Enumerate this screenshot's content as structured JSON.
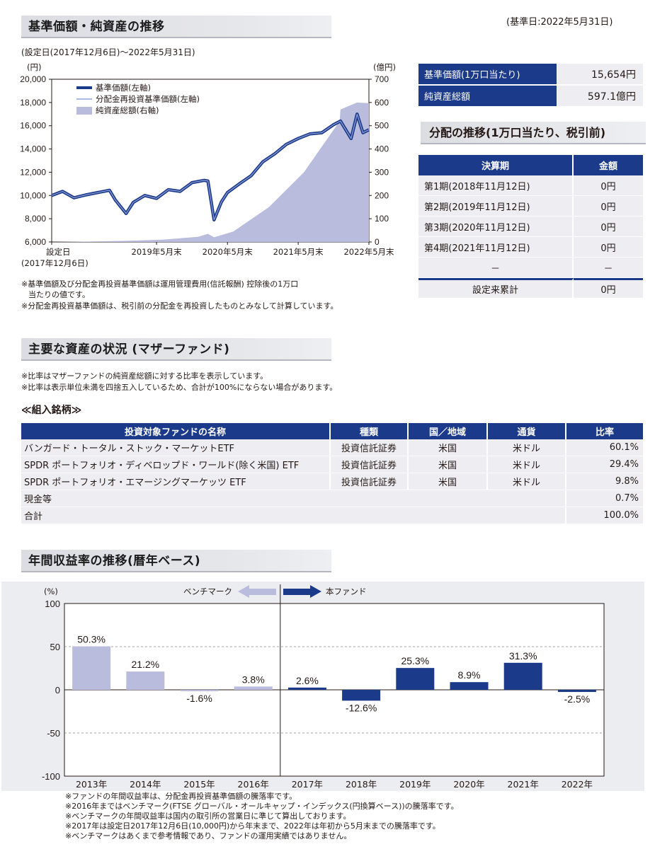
{
  "header": {
    "base_date": "(基準日:2022年5月31日)"
  },
  "section1": {
    "title": "基準価額・純資産の推移",
    "period": "(設定日(2017年12月6日)～2022年5月31日)",
    "note1": "※基準価額及び分配金再投資基準価額は運用管理費用(信託報酬) 控除後の1万口",
    "note1b": "当たりの値です。",
    "note2": "※分配金再投資基準価額は、税引前の分配金を再投資したものとみなして計算しています。"
  },
  "chart_data": [
    {
      "type": "line",
      "left_unit": "(円)",
      "right_unit": "(億円)",
      "yticks_left": [
        "20,000",
        "18,000",
        "16,000",
        "14,000",
        "12,000",
        "10,000",
        "8,000",
        "6,000"
      ],
      "yticks_right": [
        "700",
        "600",
        "500",
        "400",
        "300",
        "200",
        "100",
        "0"
      ],
      "ylim_left": [
        6000,
        20000
      ],
      "ylim_right": [
        0,
        700
      ],
      "xticks": [
        "設定日",
        "2019年5月末",
        "2020年5月末",
        "2021年5月末",
        "2022年5月末"
      ],
      "xtick_sub": "(2017年12月6日)",
      "legend": [
        "基準価額(左軸)",
        "分配金再投資基準価額(左軸)",
        "純資産総額(右軸)"
      ],
      "legend_placement": "top-left",
      "series": [
        {
          "name": "基準価額(左軸)",
          "x": [
            "2017-12-06",
            "2018-01-31",
            "2018-03-31",
            "2018-05-31",
            "2018-07-31",
            "2018-09-30",
            "2018-10-31",
            "2018-12-25",
            "2019-01-31",
            "2019-03-31",
            "2019-05-31",
            "2019-07-31",
            "2019-09-30",
            "2019-11-30",
            "2020-01-31",
            "2020-02-20",
            "2020-03-23",
            "2020-04-30",
            "2020-05-31",
            "2020-07-31",
            "2020-09-30",
            "2020-11-30",
            "2021-01-31",
            "2021-03-31",
            "2021-05-31",
            "2021-07-31",
            "2021-09-30",
            "2021-11-30",
            "2022-01-04",
            "2022-02-28",
            "2022-03-31",
            "2022-04-30",
            "2022-05-31"
          ],
          "values": [
            10000,
            10350,
            9800,
            10050,
            10250,
            10450,
            9600,
            8450,
            9400,
            10000,
            9750,
            10500,
            10350,
            11100,
            11300,
            11250,
            7900,
            9450,
            10250,
            11000,
            11700,
            12900,
            13600,
            14400,
            14900,
            15300,
            15400,
            16100,
            16400,
            14900,
            17000,
            15400,
            15654
          ]
        },
        {
          "name": "分配金再投資基準価額(左軸)",
          "x": [
            "2017-12-06",
            "2018-01-31",
            "2018-03-31",
            "2018-05-31",
            "2018-07-31",
            "2018-09-30",
            "2018-10-31",
            "2018-12-25",
            "2019-01-31",
            "2019-03-31",
            "2019-05-31",
            "2019-07-31",
            "2019-09-30",
            "2019-11-30",
            "2020-01-31",
            "2020-02-20",
            "2020-03-23",
            "2020-04-30",
            "2020-05-31",
            "2020-07-31",
            "2020-09-30",
            "2020-11-30",
            "2021-01-31",
            "2021-03-31",
            "2021-05-31",
            "2021-07-31",
            "2021-09-30",
            "2021-11-30",
            "2022-01-04",
            "2022-02-28",
            "2022-03-31",
            "2022-04-30",
            "2022-05-31"
          ],
          "values": [
            10000,
            10350,
            9800,
            10050,
            10250,
            10450,
            9600,
            8450,
            9400,
            10000,
            9750,
            10500,
            10350,
            11100,
            11300,
            11250,
            7900,
            9450,
            10250,
            11000,
            11700,
            12900,
            13600,
            14400,
            14900,
            15300,
            15400,
            16100,
            16400,
            14900,
            17000,
            15400,
            15654
          ]
        },
        {
          "name": "純資産総額(右軸)",
          "x": [
            "2017-12-06",
            "2018-06-30",
            "2018-12-31",
            "2019-06-30",
            "2019-12-31",
            "2020-02-20",
            "2020-03-23",
            "2020-06-30",
            "2020-12-31",
            "2021-06-30",
            "2021-12-31",
            "2022-01-04",
            "2022-03-31",
            "2022-05-31"
          ],
          "values": [
            0,
            2,
            5,
            10,
            22,
            35,
            20,
            45,
            150,
            300,
            520,
            570,
            600,
            597.1
          ]
        }
      ]
    },
    {
      "type": "bar",
      "yunit": "(%)",
      "yticks": [
        "100",
        "50",
        "0",
        "-50",
        "-100"
      ],
      "ylim": [
        -100,
        100
      ],
      "categories": [
        "2013年",
        "2014年",
        "2015年",
        "2016年",
        "2017年",
        "2018年",
        "2019年",
        "2020年",
        "2021年",
        "2022年"
      ],
      "values": [
        50.3,
        21.2,
        -1.6,
        3.8,
        2.6,
        -12.6,
        25.3,
        8.9,
        31.3,
        -2.5
      ],
      "value_labels": [
        "50.3%",
        "21.2%",
        "-1.6%",
        "3.8%",
        "2.6%",
        "-12.6%",
        "25.3%",
        "8.9%",
        "31.3%",
        "-2.5%"
      ],
      "benchmark_count": 4,
      "arrow_left_label": "ベンチマーク",
      "arrow_right_label": "本ファンド",
      "colors": {
        "benchmark": "#b9bcdc",
        "fund": "#1c3a8a"
      }
    }
  ],
  "summary": {
    "rows": [
      {
        "label": "基準価額(1万口当たり)",
        "value": "15,654円"
      },
      {
        "label": "純資産総額",
        "value": "597.1億円"
      }
    ]
  },
  "distribution": {
    "title": "分配の推移(1万口当たり、税引前)",
    "header": {
      "period": "決算期",
      "amount": "金額"
    },
    "rows": [
      {
        "period": "第1期(2018年11月12日)",
        "amount": "0円"
      },
      {
        "period": "第2期(2019年11月12日)",
        "amount": "0円"
      },
      {
        "period": "第3期(2020年11月12日)",
        "amount": "0円"
      },
      {
        "period": "第4期(2021年11月12日)",
        "amount": "0円"
      },
      {
        "period": "－",
        "amount": "－"
      }
    ],
    "total": {
      "period": "設定来累計",
      "amount": "0円"
    }
  },
  "section2": {
    "title": "主要な資産の状況 (マザーファンド)",
    "note1": "※比率はマザーファンドの純資産総額に対する比率を表示しています。",
    "note2": "※比率は表示単位未満を四捨五入しているため、合計が100%にならない場合があります。",
    "holdings_title": "≪組入銘柄≫",
    "headers": [
      "投資対象ファンドの名称",
      "種類",
      "国／地域",
      "通貨",
      "比率"
    ],
    "rows": [
      {
        "name": "バンガード・トータル・ストック・マーケットETF",
        "type": "投資信託証券",
        "country": "米国",
        "currency": "米ドル",
        "ratio": "60.1%"
      },
      {
        "name": "SPDR ポートフォリオ・ディベロップド・ワールド(除く米国) ETF",
        "type": "投資信託証券",
        "country": "米国",
        "currency": "米ドル",
        "ratio": "29.4%"
      },
      {
        "name": "SPDR ポートフォリオ・エマージングマーケッツ ETF",
        "type": "投資信託証券",
        "country": "米国",
        "currency": "米ドル",
        "ratio": "9.8%"
      }
    ],
    "cash": {
      "name": "現金等",
      "ratio": "0.7%"
    },
    "total": {
      "name": "合計",
      "ratio": "100.0%"
    }
  },
  "section3": {
    "title": "年間収益率の推移(暦年ベース)",
    "notes": [
      "※ファンドの年間収益率は、分配金再投資基準価額の騰落率です。",
      "※2016年まではベンチマーク(FTSE グローバル・オールキャップ・インデックス(円換算ベース))の騰落率です。",
      "※ベンチマークの年間収益率は国内の取引所の営業日に準じて算出しております。",
      "※2017年は設定日2017年12月6日(10,000円)から年末まで、2022年は年初から5月末までの騰落率です。",
      "※ベンチマークはあくまで参考情報であり、ファンドの運用実績ではありません。"
    ]
  }
}
